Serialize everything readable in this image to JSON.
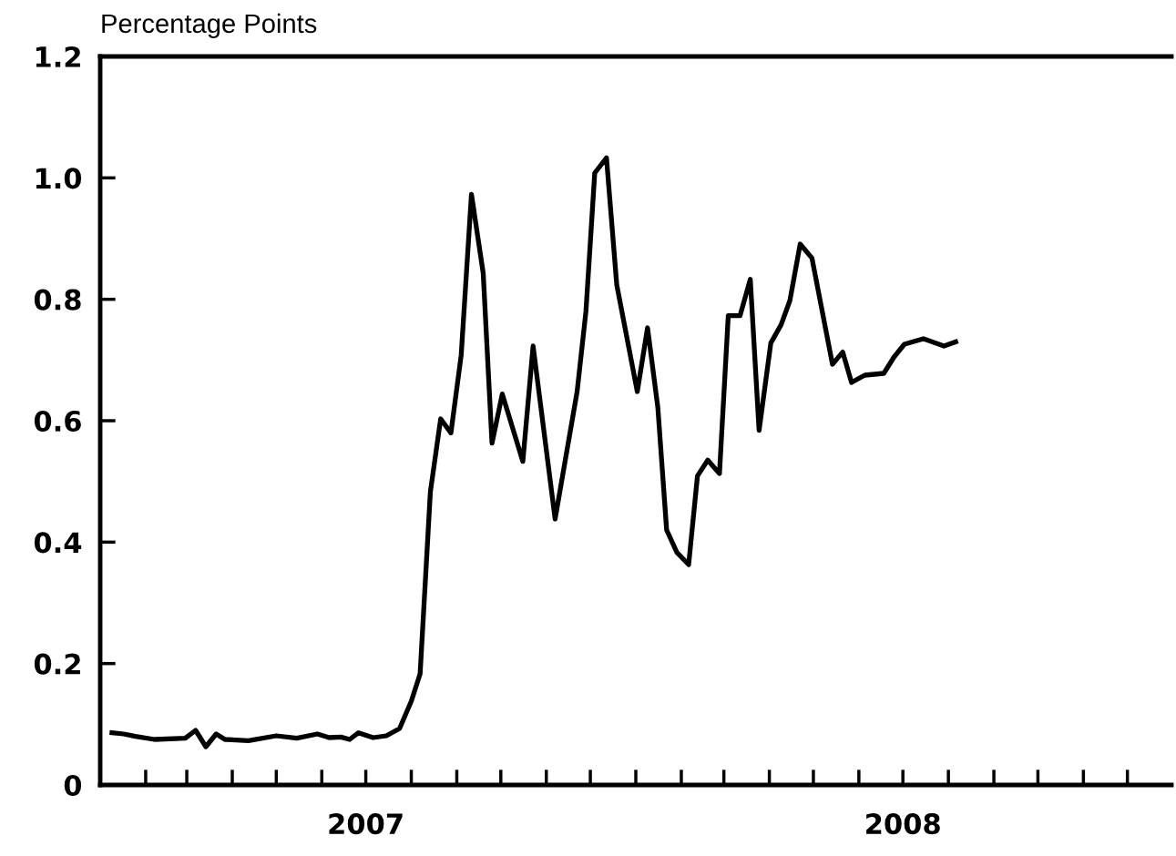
{
  "chart_data": {
    "type": "line",
    "ylabel": "Percentage Points",
    "x": [
      "2007-01-09",
      "2007-01-17",
      "2007-01-25",
      "2007-02-07",
      "2007-02-28",
      "2007-03-07",
      "2007-03-14",
      "2007-03-21",
      "2007-03-27",
      "2007-04-12",
      "2007-05-01",
      "2007-05-15",
      "2007-05-29",
      "2007-06-06",
      "2007-06-14",
      "2007-06-20",
      "2007-06-26",
      "2007-07-06",
      "2007-07-15",
      "2007-07-24",
      "2007-08-01",
      "2007-08-07",
      "2007-08-14",
      "2007-08-21",
      "2007-08-28",
      "2007-09-04",
      "2007-09-11",
      "2007-09-19",
      "2007-09-25",
      "2007-10-02",
      "2007-10-16",
      "2007-10-23",
      "2007-11-07",
      "2007-11-22",
      "2007-11-28",
      "2007-12-04",
      "2007-12-12",
      "2007-12-19",
      "2008-01-02",
      "2008-01-09",
      "2008-01-16",
      "2008-01-22",
      "2008-01-29",
      "2008-02-06",
      "2008-02-12",
      "2008-02-19",
      "2008-02-27",
      "2008-03-04",
      "2008-03-12",
      "2008-03-19",
      "2008-03-25",
      "2008-04-02",
      "2008-04-09",
      "2008-04-15",
      "2008-04-22",
      "2008-04-30",
      "2008-05-14",
      "2008-05-21",
      "2008-05-27",
      "2008-06-05",
      "2008-06-18",
      "2008-06-25",
      "2008-07-02",
      "2008-07-15",
      "2008-07-29",
      "2008-08-06"
    ],
    "series": [
      {
        "color": "#000000",
        "values": [
          0.086,
          0.084,
          0.08,
          0.075,
          0.077,
          0.09,
          0.063,
          0.084,
          0.075,
          0.073,
          0.081,
          0.077,
          0.084,
          0.078,
          0.079,
          0.075,
          0.086,
          0.078,
          0.081,
          0.093,
          0.138,
          0.183,
          0.483,
          0.603,
          0.58,
          0.708,
          0.973,
          0.843,
          0.563,
          0.644,
          0.533,
          0.723,
          0.438,
          0.648,
          0.78,
          1.008,
          1.033,
          0.824,
          0.648,
          0.753,
          0.622,
          0.42,
          0.383,
          0.363,
          0.509,
          0.535,
          0.513,
          0.773,
          0.773,
          0.833,
          0.584,
          0.728,
          0.758,
          0.798,
          0.891,
          0.868,
          0.693,
          0.713,
          0.663,
          0.675,
          0.678,
          0.705,
          0.726,
          0.735,
          0.723,
          0.73
        ]
      }
    ],
    "xlim": [
      "2007-01-01",
      "2008-12-31"
    ],
    "xticks": [
      {
        "value": "2007-07-01",
        "label": "2007"
      },
      {
        "value": "2008-07-01",
        "label": "2008"
      }
    ],
    "ylim": [
      0,
      1.2
    ],
    "yticks": [
      0,
      0.2,
      0.4,
      0.6,
      0.8,
      {
        "value": 1,
        "label": "1.0"
      },
      1.2
    ],
    "grid": false,
    "marker": "none",
    "line_style": "solid"
  }
}
